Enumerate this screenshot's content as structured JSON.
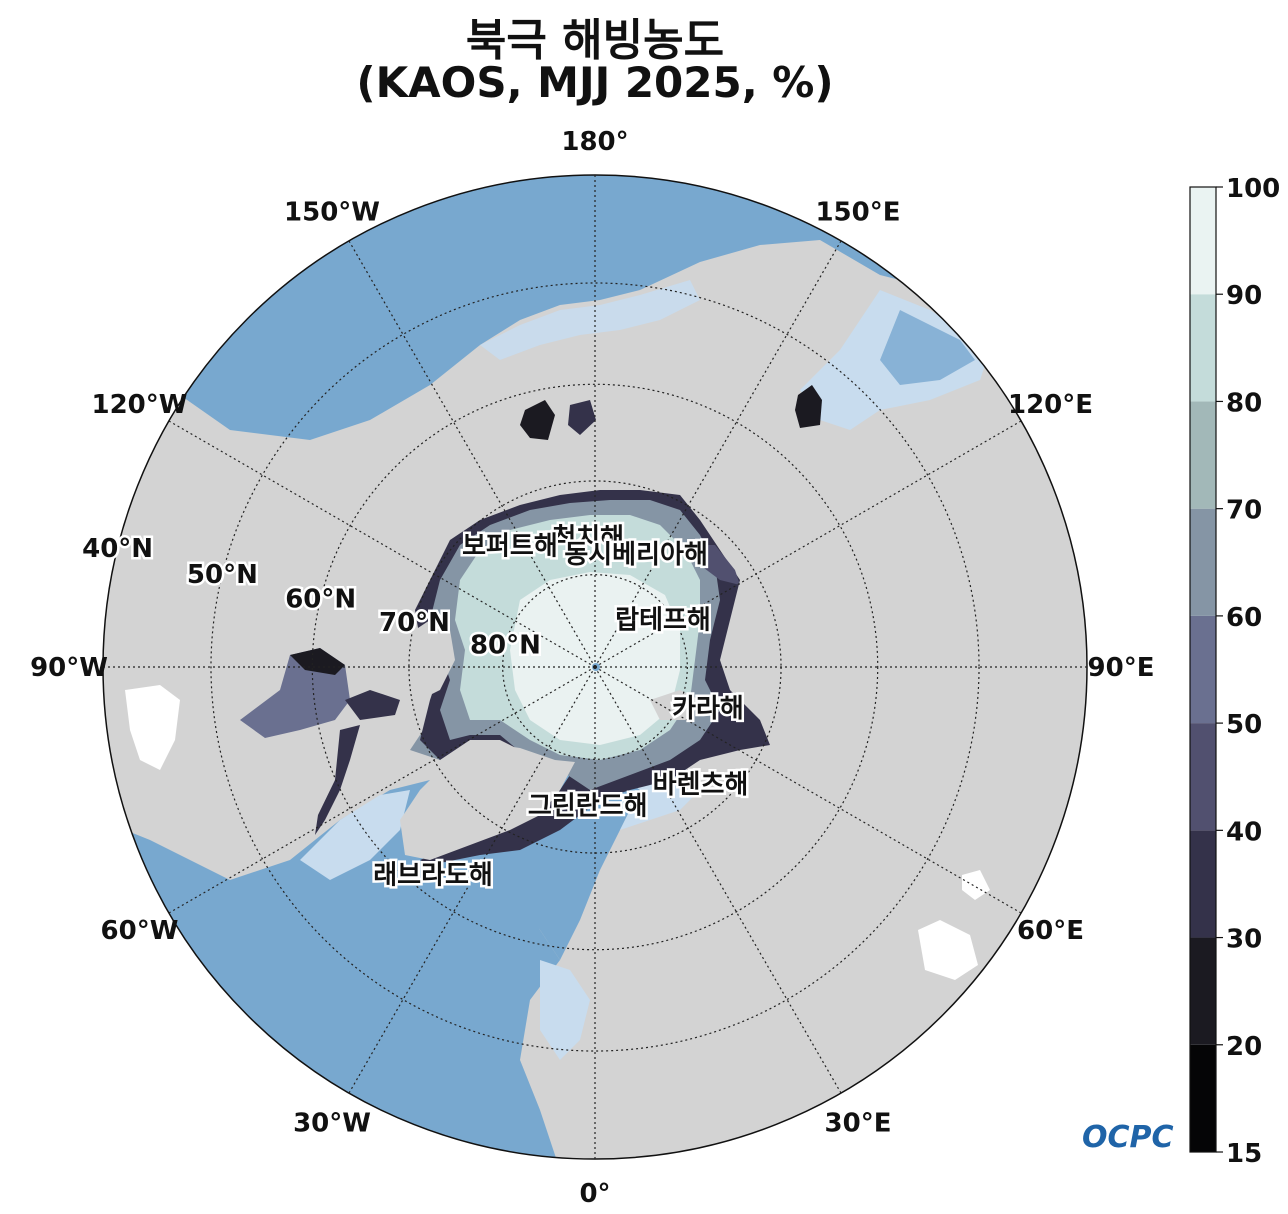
{
  "title": {
    "line1": "북극 해빙농도",
    "line2": "(KAOS, MJJ 2025, %)"
  },
  "map": {
    "projection": "north-polar-stereographic",
    "longitude_labels": [
      {
        "lon": 180,
        "text": "180°"
      },
      {
        "lon": 150,
        "text": "150°E"
      },
      {
        "lon": 120,
        "text": "120°E"
      },
      {
        "lon": 90,
        "text": "90°E"
      },
      {
        "lon": 60,
        "text": "60°E"
      },
      {
        "lon": 30,
        "text": "30°E"
      },
      {
        "lon": 0,
        "text": "0°"
      },
      {
        "lon": -30,
        "text": "30°W"
      },
      {
        "lon": -60,
        "text": "60°W"
      },
      {
        "lon": -90,
        "text": "90°W"
      },
      {
        "lon": -120,
        "text": "120°W"
      },
      {
        "lon": -150,
        "text": "150°W"
      }
    ],
    "latitude_labels": [
      {
        "lat": 40,
        "text": "40°N"
      },
      {
        "lat": 50,
        "text": "50°N"
      },
      {
        "lat": 60,
        "text": "60°N"
      },
      {
        "lat": 70,
        "text": "70°N"
      },
      {
        "lat": 80,
        "text": "80°N"
      }
    ],
    "sea_labels": [
      {
        "text": "척치해",
        "lat": 76,
        "lon": -177
      },
      {
        "text": "동시베리아해",
        "lat": 77,
        "lon": 160
      },
      {
        "text": "보퍼트해",
        "lat": 74,
        "lon": -145
      },
      {
        "text": "랍테프해",
        "lat": 81,
        "lon": 125
      },
      {
        "text": "카라해",
        "lat": 77,
        "lon": 70
      },
      {
        "text": "바렌츠해",
        "lat": 73,
        "lon": 42
      },
      {
        "text": "그린란드해",
        "lat": 75,
        "lon": -3
      },
      {
        "text": "래브라도해",
        "lat": 62,
        "lon": -38
      }
    ],
    "colors": {
      "land": "#d3d3d3",
      "ocean": "#78a8cf",
      "ocean_light": "#c8dcee",
      "pack_ice": "#eaf2f1"
    }
  },
  "colorbar": {
    "ticks": [
      15,
      20,
      30,
      40,
      50,
      60,
      70,
      80,
      90,
      100
    ],
    "colors": [
      "#050506",
      "#1b1a21",
      "#34324a",
      "#51506f",
      "#6a7090",
      "#8595a5",
      "#a2b8b8",
      "#c4dcda",
      "#eaf3f2"
    ]
  },
  "logo": {
    "text": "OCPC"
  }
}
